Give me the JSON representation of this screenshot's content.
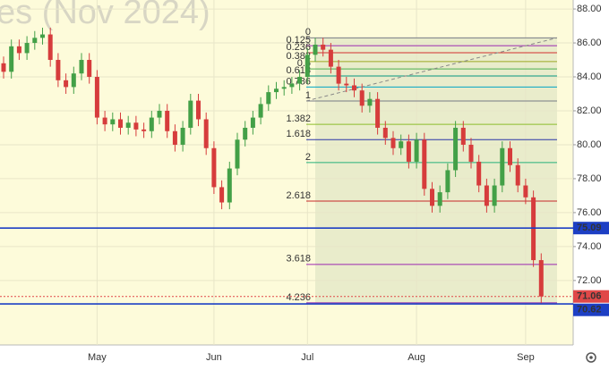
{
  "chart_data": {
    "type": "candlestick",
    "watermark": "es (Nov 2024)",
    "categories": [
      null,
      null,
      null,
      null,
      null,
      null,
      null,
      null,
      null,
      null,
      null,
      null,
      "May",
      null,
      null,
      null,
      null,
      null,
      null,
      null,
      null,
      null,
      null,
      null,
      null,
      null,
      null,
      "Jun",
      null,
      null,
      null,
      null,
      null,
      null,
      null,
      null,
      null,
      null,
      null,
      "Jul",
      null,
      null,
      null,
      null,
      null,
      null,
      null,
      null,
      null,
      null,
      null,
      null,
      null,
      "Aug",
      null,
      null,
      null,
      null,
      null,
      null,
      null,
      null,
      null,
      null,
      null,
      null,
      null,
      "Sep",
      null,
      null
    ],
    "open": [
      84.8,
      84.3,
      85.8,
      85.4,
      86.0,
      86.3,
      86.5,
      85.0,
      83.8,
      83.4,
      84.2,
      85.0,
      84.0,
      81.6,
      81.2,
      81.5,
      81.0,
      81.3,
      80.9,
      80.8,
      81.6,
      82.0,
      80.8,
      80.0,
      81.0,
      82.6,
      81.5,
      79.8,
      77.5,
      76.6,
      78.6,
      80.3,
      81.0,
      81.6,
      82.4,
      83.1,
      83.3,
      83.4,
      83.6,
      84.0,
      85.3,
      85.9,
      85.6,
      84.6,
      83.6,
      83.5,
      83.2,
      82.3,
      82.7,
      81.0,
      80.4,
      79.8,
      80.2,
      79.0,
      80.3,
      77.4,
      76.4,
      77.2,
      78.5,
      81.0,
      80.0,
      79.0,
      77.6,
      76.4,
      77.6,
      79.8,
      78.8,
      77.6,
      76.9,
      73.2
    ],
    "high": [
      85.2,
      86.2,
      86.2,
      86.4,
      86.7,
      86.9,
      86.9,
      85.4,
      84.2,
      84.6,
      85.4,
      85.4,
      84.4,
      82.0,
      81.9,
      81.9,
      81.7,
      81.7,
      81.3,
      82.0,
      82.4,
      82.4,
      81.2,
      81.4,
      83.0,
      83.0,
      81.9,
      80.2,
      77.9,
      79.0,
      80.7,
      81.4,
      82.0,
      82.8,
      83.5,
      83.7,
      83.8,
      84.0,
      84.4,
      85.7,
      86.3,
      86.3,
      86.0,
      85.0,
      84.0,
      83.9,
      83.6,
      83.1,
      83.1,
      81.4,
      80.8,
      80.6,
      80.6,
      80.7,
      80.7,
      77.8,
      77.6,
      78.9,
      81.4,
      81.4,
      80.4,
      79.4,
      78.0,
      78.0,
      80.2,
      80.2,
      79.2,
      78.0,
      77.3,
      73.6
    ],
    "low": [
      83.9,
      83.9,
      85.0,
      85.0,
      85.6,
      85.9,
      84.6,
      83.4,
      83.0,
      83.0,
      83.8,
      83.6,
      81.2,
      80.8,
      80.8,
      80.6,
      80.6,
      80.5,
      80.4,
      80.4,
      81.2,
      80.4,
      79.6,
      79.6,
      80.6,
      81.1,
      79.4,
      77.1,
      76.2,
      76.2,
      78.2,
      79.9,
      80.6,
      81.2,
      82.0,
      82.7,
      82.9,
      83.0,
      83.2,
      83.6,
      84.9,
      85.2,
      84.2,
      83.2,
      83.1,
      82.8,
      81.9,
      81.9,
      80.6,
      80.0,
      79.4,
      79.4,
      78.6,
      78.6,
      77.0,
      76.0,
      76.0,
      76.8,
      78.1,
      79.6,
      78.6,
      77.2,
      76.0,
      76.0,
      77.2,
      78.4,
      77.2,
      76.5,
      72.8,
      70.66
    ],
    "close": [
      84.3,
      85.8,
      85.4,
      86.0,
      86.3,
      86.5,
      85.0,
      83.8,
      83.4,
      84.2,
      85.0,
      84.0,
      81.6,
      81.2,
      81.5,
      81.0,
      81.3,
      80.9,
      80.8,
      81.6,
      82.0,
      80.8,
      80.0,
      81.0,
      82.6,
      81.5,
      79.8,
      77.5,
      76.6,
      78.6,
      80.3,
      81.0,
      81.6,
      82.4,
      83.1,
      83.3,
      83.4,
      83.6,
      84.0,
      85.3,
      85.9,
      85.6,
      84.6,
      83.6,
      83.5,
      83.2,
      82.3,
      82.7,
      81.0,
      80.4,
      79.8,
      80.2,
      79.0,
      80.3,
      77.4,
      76.4,
      77.2,
      78.5,
      81.0,
      80.0,
      79.0,
      77.6,
      76.4,
      77.6,
      79.8,
      78.8,
      77.6,
      76.9,
      73.2,
      71.06
    ],
    "up_color": "#43a047",
    "down_color": "#d63c3c",
    "ylim": [
      68.2,
      88.53
    ],
    "yticks": [
      {
        "value": 72,
        "label": "72.00"
      },
      {
        "value": 74,
        "label": "74.00"
      },
      {
        "value": 76,
        "label": "76.00"
      },
      {
        "value": 78,
        "label": "78.00"
      },
      {
        "value": 80,
        "label": "80.00"
      },
      {
        "value": 82,
        "label": "82.00"
      },
      {
        "value": 84,
        "label": "84.00"
      },
      {
        "value": 86,
        "label": "86.00"
      },
      {
        "value": 88,
        "label": "88.00"
      }
    ],
    "grid": true,
    "price_lines": [
      {
        "value": 75.09,
        "color": "#1d3fc4"
      },
      {
        "value": 71.06,
        "color": "#e04848"
      },
      {
        "value": 70.62,
        "color": "#1d3fc4"
      }
    ],
    "fib_levels": [
      {
        "ratio": 0,
        "price": 86.3,
        "color": "#787b86"
      },
      {
        "ratio": 0.125,
        "price": 85.84,
        "color": "#9c27b0"
      },
      {
        "ratio": 0.236,
        "price": 85.42,
        "color": "#d32f2f"
      },
      {
        "ratio": 0.382,
        "price": 84.9,
        "color": "#9aa822"
      },
      {
        "ratio": 0.5,
        "price": 84.47,
        "color": "#4caf50"
      },
      {
        "ratio": 0.618,
        "price": 84.05,
        "color": "#089981"
      },
      {
        "ratio": 0.786,
        "price": 83.4,
        "color": "#00a5c4"
      },
      {
        "ratio": 1,
        "price": 82.58,
        "color": "#787b86"
      },
      {
        "ratio": 1.382,
        "price": 81.2,
        "color": "#8bbd2a"
      },
      {
        "ratio": 1.618,
        "price": 80.3,
        "color": "#2b35a8"
      },
      {
        "ratio": 2,
        "price": 78.95,
        "color": "#26b07a"
      },
      {
        "ratio": 2.618,
        "price": 76.68,
        "color": "#c62828"
      },
      {
        "ratio": 3.618,
        "price": 72.95,
        "color": "#9c27b0"
      },
      {
        "ratio": 4.236,
        "price": 70.68,
        "color": "#8e24aa"
      }
    ]
  }
}
